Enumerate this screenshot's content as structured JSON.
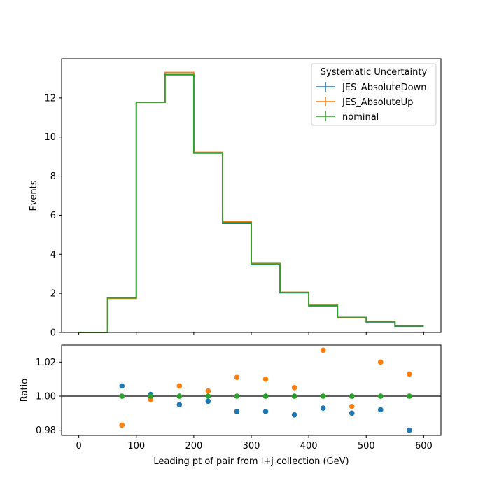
{
  "chart_data": {
    "type": "line",
    "xlabel": "Leading pt of pair from l+j collection (GeV)",
    "xlim": [
      -30,
      630
    ],
    "xticks": [
      0,
      100,
      200,
      300,
      400,
      500,
      600
    ],
    "bin_edges": [
      0,
      50,
      100,
      150,
      200,
      250,
      300,
      350,
      400,
      450,
      500,
      550,
      600
    ],
    "legend": {
      "title": "Systematic Uncertainty",
      "placement": "upper right"
    },
    "series": [
      {
        "name": "JES_AbsoluteDown",
        "color": "#1f77b4",
        "values": [
          0.0,
          1.78,
          11.78,
          13.18,
          9.17,
          5.58,
          3.47,
          2.03,
          1.36,
          0.77,
          0.54,
          0.32
        ],
        "ratio": [
          null,
          1.006,
          1.001,
          0.995,
          0.997,
          0.991,
          0.991,
          0.989,
          0.993,
          0.99,
          0.992,
          0.98
        ]
      },
      {
        "name": "JES_AbsoluteUp",
        "color": "#ff7f0e",
        "values": [
          0.0,
          1.74,
          11.78,
          13.3,
          9.22,
          5.69,
          3.54,
          2.06,
          1.41,
          0.76,
          0.56,
          0.33
        ],
        "ratio": [
          null,
          0.983,
          0.998,
          1.006,
          1.003,
          1.011,
          1.01,
          1.005,
          1.027,
          0.994,
          1.02,
          1.013
        ]
      },
      {
        "name": "nominal",
        "color": "#2ca02c",
        "values": [
          0.0,
          1.77,
          11.78,
          13.2,
          9.19,
          5.63,
          3.5,
          2.05,
          1.37,
          0.77,
          0.55,
          0.33
        ],
        "ratio": [
          null,
          1.0,
          1.0,
          1.0,
          1.0,
          1.0,
          1.0,
          1.0,
          1.0,
          1.0,
          1.0,
          1.0
        ]
      }
    ],
    "main_panel": {
      "ylabel": "Events",
      "ylim": [
        0,
        14
      ],
      "yticks": [
        0,
        2,
        4,
        6,
        8,
        10,
        12
      ]
    },
    "ratio_panel": {
      "ylabel": "Ratio",
      "ylim": [
        0.977,
        1.03
      ],
      "yticks": [
        0.98,
        1.0,
        1.02
      ],
      "ytick_labels": [
        "0.98",
        "1.00",
        "1.02"
      ],
      "reference_line": 1.0
    }
  }
}
